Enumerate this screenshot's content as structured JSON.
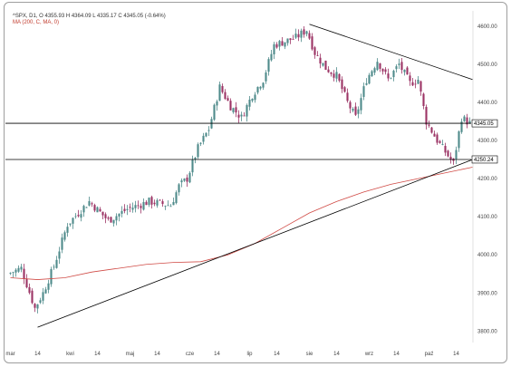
{
  "header": {
    "line1": "^SPX, D1, O 4355.93  H 4364.09  L 4335.17  C 4345.05  (-0.64%)",
    "line2": "MA (200, C, MA, 0)"
  },
  "chart_data": {
    "type": "candlestick",
    "title": "",
    "xlabel": "",
    "ylabel": "",
    "ylim": [
      3770,
      4640
    ],
    "y_ticks": [
      3800,
      3900,
      4000,
      4100,
      4200,
      4300,
      4400,
      4500,
      4600
    ],
    "y_tick_labels": [
      "3800.00",
      "3900.00",
      "4000.00",
      "4100.00",
      "4200.00",
      "4300.00",
      "4400.00",
      "4500.00",
      "4600.00"
    ],
    "x_ticks": [
      {
        "label": "mar",
        "i": 0
      },
      {
        "label": "14",
        "i": 10
      },
      {
        "label": "kwi",
        "i": 22
      },
      {
        "label": "14",
        "i": 32
      },
      {
        "label": "maj",
        "i": 44
      },
      {
        "label": "14",
        "i": 54
      },
      {
        "label": "cze",
        "i": 66
      },
      {
        "label": "14",
        "i": 76
      },
      {
        "label": "lip",
        "i": 88
      },
      {
        "label": "14",
        "i": 98
      },
      {
        "label": "sie",
        "i": 110
      },
      {
        "label": "14",
        "i": 120
      },
      {
        "label": "wrz",
        "i": 132
      },
      {
        "label": "14",
        "i": 142
      },
      {
        "label": "paź",
        "i": 154
      },
      {
        "label": "14",
        "i": 164
      }
    ],
    "n_candles": 170,
    "key_closes": [
      [
        0,
        3950
      ],
      [
        5,
        3965
      ],
      [
        10,
        3860
      ],
      [
        13,
        3900
      ],
      [
        17,
        3970
      ],
      [
        22,
        4080
      ],
      [
        30,
        4140
      ],
      [
        37,
        4090
      ],
      [
        44,
        4120
      ],
      [
        52,
        4140
      ],
      [
        60,
        4130
      ],
      [
        63,
        4180
      ],
      [
        66,
        4200
      ],
      [
        70,
        4280
      ],
      [
        74,
        4330
      ],
      [
        78,
        4440
      ],
      [
        82,
        4390
      ],
      [
        86,
        4360
      ],
      [
        90,
        4420
      ],
      [
        94,
        4460
      ],
      [
        98,
        4550
      ],
      [
        102,
        4560
      ],
      [
        106,
        4570
      ],
      [
        110,
        4590
      ],
      [
        113,
        4530
      ],
      [
        117,
        4490
      ],
      [
        121,
        4470
      ],
      [
        125,
        4400
      ],
      [
        128,
        4360
      ],
      [
        132,
        4460
      ],
      [
        136,
        4510
      ],
      [
        140,
        4460
      ],
      [
        144,
        4500
      ],
      [
        148,
        4450
      ],
      [
        151,
        4460
      ],
      [
        154,
        4350
      ],
      [
        158,
        4300
      ],
      [
        161,
        4270
      ],
      [
        164,
        4240
      ],
      [
        167,
        4360
      ],
      [
        170,
        4345
      ]
    ],
    "ma200": [
      [
        0,
        3940
      ],
      [
        10,
        3935
      ],
      [
        20,
        3940
      ],
      [
        30,
        3955
      ],
      [
        40,
        3965
      ],
      [
        50,
        3975
      ],
      [
        60,
        3980
      ],
      [
        70,
        3982
      ],
      [
        80,
        4000
      ],
      [
        90,
        4030
      ],
      [
        100,
        4070
      ],
      [
        110,
        4110
      ],
      [
        120,
        4140
      ],
      [
        130,
        4165
      ],
      [
        140,
        4185
      ],
      [
        150,
        4200
      ],
      [
        160,
        4215
      ],
      [
        170,
        4230
      ]
    ],
    "horizontal_levels": [
      {
        "value": 4345.05,
        "label": "4345.05"
      },
      {
        "value": 4250.24,
        "label": "4250.24"
      }
    ],
    "trendlines": [
      {
        "from": [
          10,
          3810
        ],
        "to": [
          170,
          4250
        ]
      },
      {
        "from": [
          110,
          4605
        ],
        "to": [
          170,
          4460
        ]
      }
    ],
    "colors": {
      "up": "#4f8b8b",
      "down": "#9c3465",
      "ma": "#d04a45",
      "line": "#000000"
    }
  }
}
